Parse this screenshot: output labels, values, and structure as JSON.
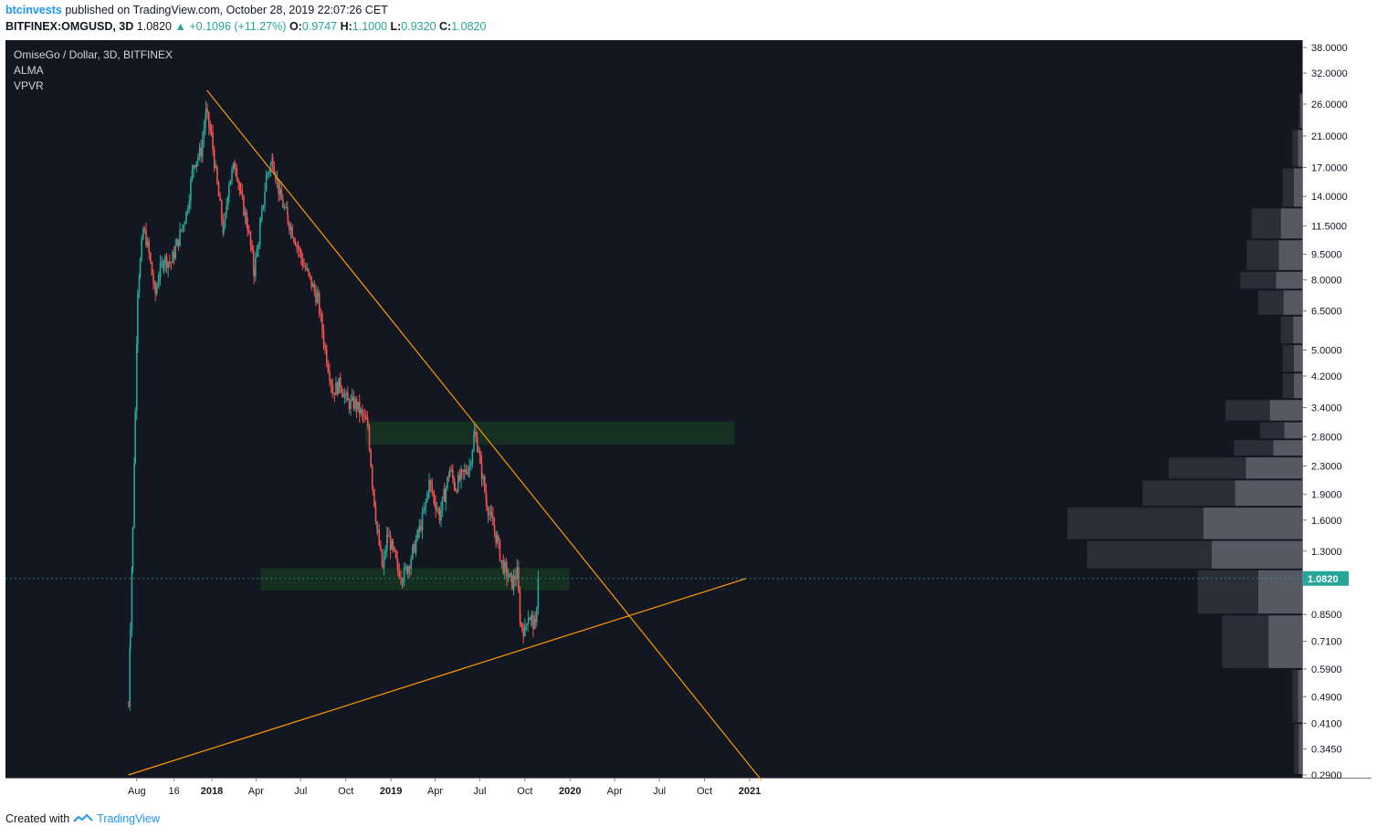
{
  "header": {
    "author": "btcinvests",
    "published_text": "published on TradingView.com, October 28, 2019 22:07:26 CET",
    "symbol": "BITFINEX:OMGUSD, 3D",
    "last": "1.0820",
    "change": "+0.1096 (+11.27%)",
    "open_label": "O:",
    "open": "0.9747",
    "high_label": "H:",
    "high": "1.1000",
    "low_label": "L:",
    "low": "0.9320",
    "close_label": "C:",
    "close": "1.0820"
  },
  "footer": {
    "created_with": "Created with",
    "brand": "TradingView"
  },
  "colors": {
    "background": "#131722",
    "up": "#26a69a",
    "down": "#ef5350",
    "trendline": "#ff9800",
    "zone": "#1b5e20",
    "vpvr": "#5d606b",
    "vpvr_dark": "#2a2e39"
  },
  "chart_data": {
    "type": "candlestick",
    "title": "OmiseGo / Dollar, 3D, BITFINEX",
    "indicators": [
      "ALMA",
      "VPVR"
    ],
    "y_scale": "log",
    "y_ticks": [
      "38.0000",
      "32.0000",
      "26.0000",
      "21.0000",
      "17.0000",
      "14.0000",
      "11.5000",
      "9.5000",
      "8.0000",
      "6.5000",
      "5.0000",
      "4.2000",
      "3.4000",
      "2.8000",
      "2.3000",
      "1.9000",
      "1.6000",
      "1.3000",
      "0.8500",
      "0.7100",
      "0.5900",
      "0.4900",
      "0.4100",
      "0.3450",
      "0.2900"
    ],
    "x_ticks": [
      "Aug",
      "16",
      "2018",
      "Apr",
      "Jul",
      "Oct",
      "2019",
      "Apr",
      "Jul",
      "Oct",
      "2020",
      "Apr",
      "Jul",
      "Oct",
      "2021"
    ],
    "last_price_label": "1.0820",
    "price_path": [
      [
        "2017-07-15",
        0.46
      ],
      [
        "2017-07-19",
        0.8
      ],
      [
        "2017-07-24",
        1.5
      ],
      [
        "2017-07-29",
        3.3
      ],
      [
        "2017-08-03",
        7.6
      ],
      [
        "2017-08-08",
        9.0
      ],
      [
        "2017-08-14",
        11.2
      ],
      [
        "2017-08-20",
        10.5
      ],
      [
        "2017-08-26",
        9.5
      ],
      [
        "2017-09-01",
        8.3
      ],
      [
        "2017-09-08",
        7.3
      ],
      [
        "2017-09-15",
        8.3
      ],
      [
        "2017-09-25",
        9.2
      ],
      [
        "2017-10-10",
        9.0
      ],
      [
        "2017-10-25",
        10.5
      ],
      [
        "2017-11-10",
        12.5
      ],
      [
        "2017-11-25",
        17.5
      ],
      [
        "2017-12-10",
        19.0
      ],
      [
        "2017-12-20",
        24.5
      ],
      [
        "2017-12-31",
        21.0
      ],
      [
        "2018-01-12",
        15.0
      ],
      [
        "2018-01-25",
        11.0
      ],
      [
        "2018-02-05",
        15.5
      ],
      [
        "2018-02-18",
        17.5
      ],
      [
        "2018-03-01",
        14.0
      ],
      [
        "2018-03-15",
        11.5
      ],
      [
        "2018-03-28",
        8.5
      ],
      [
        "2018-04-10",
        11.5
      ],
      [
        "2018-04-22",
        16.0
      ],
      [
        "2018-05-05",
        18.0
      ],
      [
        "2018-05-20",
        14.0
      ],
      [
        "2018-06-05",
        12.0
      ],
      [
        "2018-06-20",
        10.5
      ],
      [
        "2018-07-05",
        9.0
      ],
      [
        "2018-07-20",
        8.0
      ],
      [
        "2018-08-05",
        7.0
      ],
      [
        "2018-08-20",
        5.0
      ],
      [
        "2018-09-05",
        3.8
      ],
      [
        "2018-09-20",
        4.0
      ],
      [
        "2018-10-05",
        3.5
      ],
      [
        "2018-10-20",
        3.5
      ],
      [
        "2018-11-05",
        3.2
      ],
      [
        "2018-11-15",
        3.0
      ],
      [
        "2018-11-25",
        2.0
      ],
      [
        "2018-12-05",
        1.45
      ],
      [
        "2018-12-15",
        1.15
      ],
      [
        "2018-12-25",
        1.45
      ],
      [
        "2019-01-05",
        1.3
      ],
      [
        "2019-01-15",
        1.15
      ],
      [
        "2019-01-25",
        1.1
      ],
      [
        "2019-02-05",
        1.18
      ],
      [
        "2019-02-15",
        1.3
      ],
      [
        "2019-02-28",
        1.5
      ],
      [
        "2019-03-10",
        1.7
      ],
      [
        "2019-03-20",
        2.05
      ],
      [
        "2019-03-30",
        1.85
      ],
      [
        "2019-04-10",
        1.65
      ],
      [
        "2019-04-20",
        1.9
      ],
      [
        "2019-05-01",
        2.25
      ],
      [
        "2019-05-12",
        2.0
      ],
      [
        "2019-05-25",
        2.15
      ],
      [
        "2019-06-10",
        2.3
      ],
      [
        "2019-06-20",
        2.85
      ],
      [
        "2019-06-28",
        2.6
      ],
      [
        "2019-07-05",
        2.2
      ],
      [
        "2019-07-15",
        1.8
      ],
      [
        "2019-07-25",
        1.6
      ],
      [
        "2019-08-05",
        1.4
      ],
      [
        "2019-08-15",
        1.2
      ],
      [
        "2019-08-25",
        1.12
      ],
      [
        "2019-09-05",
        1.05
      ],
      [
        "2019-09-15",
        1.12
      ],
      [
        "2019-09-22",
        0.8
      ],
      [
        "2019-10-01",
        0.76
      ],
      [
        "2019-10-08",
        0.85
      ],
      [
        "2019-10-15",
        0.82
      ],
      [
        "2019-10-22",
        0.78
      ],
      [
        "2019-10-28",
        1.082
      ]
    ],
    "support_zones": [
      {
        "from": "2018-04-10",
        "to": "2019-12-31",
        "low": 1.0,
        "high": 1.16
      },
      {
        "from": "2018-11-10",
        "to": "2020-12-01",
        "low": 2.65,
        "high": 3.1
      }
    ],
    "trendlines": [
      {
        "from": [
          "2017-12-22",
          28.5
        ],
        "to": [
          "2021-01-25",
          0.28
        ]
      },
      {
        "from": [
          "2017-07-15",
          0.29
        ],
        "to": [
          "2020-12-25",
          1.082
        ]
      }
    ],
    "volume_profile": [
      {
        "price": [
          0.29,
          0.41
        ],
        "value": 0.05
      },
      {
        "price": [
          0.41,
          0.59
        ],
        "value": 0.06
      },
      {
        "price": [
          0.59,
          0.85
        ],
        "value": 0.49
      },
      {
        "price": [
          0.85,
          1.15
        ],
        "value": 0.64
      },
      {
        "price": [
          1.15,
          1.4
        ],
        "value": 1.32
      },
      {
        "price": [
          1.4,
          1.75
        ],
        "value": 1.44
      },
      {
        "price": [
          1.75,
          2.1
        ],
        "value": 0.98
      },
      {
        "price": [
          2.1,
          2.45
        ],
        "value": 0.82
      },
      {
        "price": [
          2.45,
          2.75
        ],
        "value": 0.42
      },
      {
        "price": [
          2.75,
          3.1
        ],
        "value": 0.26
      },
      {
        "price": [
          3.1,
          3.6
        ],
        "value": 0.47
      },
      {
        "price": [
          3.6,
          4.3
        ],
        "value": 0.12
      },
      {
        "price": [
          4.3,
          5.2
        ],
        "value": 0.12
      },
      {
        "price": [
          5.2,
          6.3
        ],
        "value": 0.13
      },
      {
        "price": [
          6.3,
          7.5
        ],
        "value": 0.27
      },
      {
        "price": [
          7.5,
          8.5
        ],
        "value": 0.38
      },
      {
        "price": [
          8.5,
          10.5
        ],
        "value": 0.34
      },
      {
        "price": [
          10.5,
          13.0
        ],
        "value": 0.31
      },
      {
        "price": [
          13.0,
          17.0
        ],
        "value": 0.12
      },
      {
        "price": [
          17.0,
          22.0
        ],
        "value": 0.06
      },
      {
        "price": [
          22.0,
          28.0
        ],
        "value": 0.02
      }
    ]
  }
}
